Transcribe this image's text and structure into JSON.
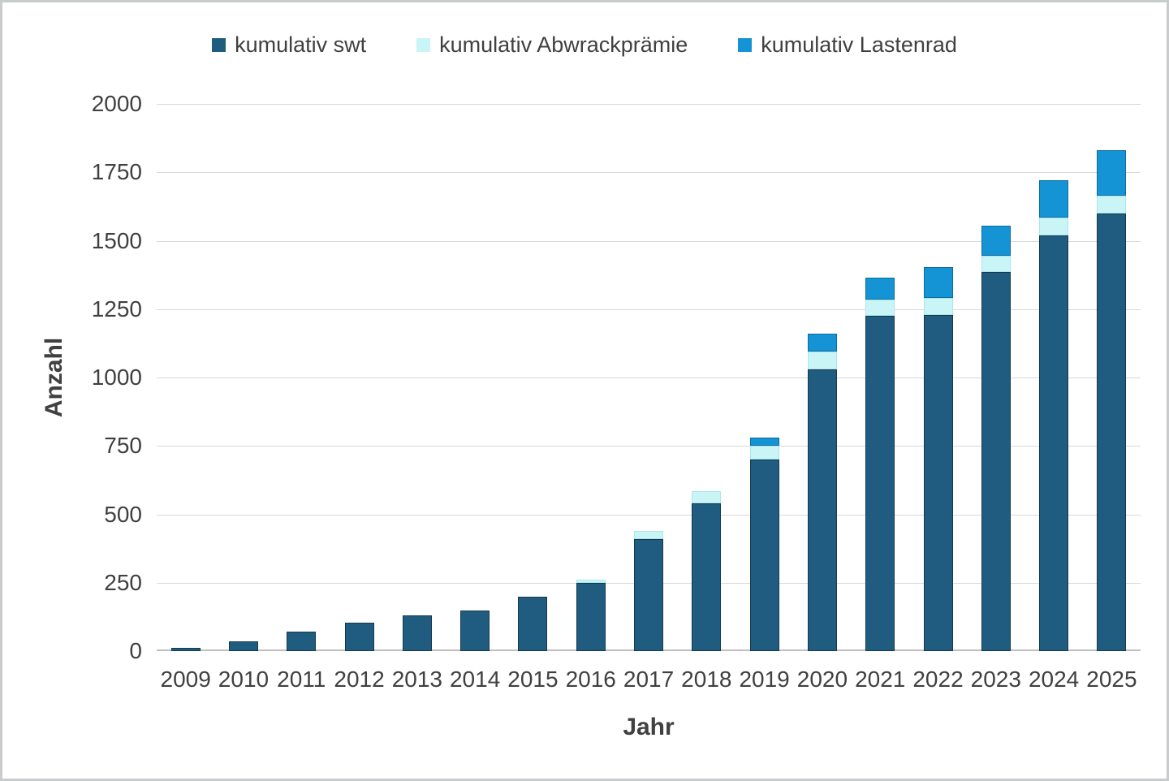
{
  "chart_data": {
    "type": "bar",
    "stacked": true,
    "title": "",
    "xlabel": "Jahr",
    "ylabel": "Anzahl",
    "ylim": [
      0,
      2000
    ],
    "yticks": [
      0,
      250,
      500,
      750,
      1000,
      1250,
      1500,
      1750,
      2000
    ],
    "grid": true,
    "legend_position": "top",
    "categories": [
      "2009",
      "2010",
      "2011",
      "2012",
      "2013",
      "2014",
      "2015",
      "2016",
      "2017",
      "2018",
      "2019",
      "2020",
      "2021",
      "2022",
      "2023",
      "2024",
      "2025"
    ],
    "series": [
      {
        "name": "kumulativ swt",
        "color": "#1F5C80",
        "border_color": "#14394F",
        "values": [
          12,
          35,
          70,
          105,
          130,
          150,
          200,
          250,
          410,
          540,
          700,
          1030,
          1225,
          1230,
          1385,
          1520,
          1600
        ]
      },
      {
        "name": "kumulativ Abwrackprämie",
        "color": "#C9F5F7",
        "border_color": "#ACE5E9",
        "values": [
          0,
          0,
          0,
          0,
          0,
          0,
          0,
          12,
          30,
          45,
          50,
          65,
          60,
          60,
          60,
          65,
          65
        ]
      },
      {
        "name": "kumulativ Lastenrad",
        "color": "#1494D4",
        "border_color": "#0C6CA0",
        "values": [
          0,
          0,
          0,
          0,
          0,
          0,
          0,
          0,
          0,
          0,
          30,
          65,
          80,
          115,
          110,
          135,
          165
        ]
      }
    ],
    "colors": {
      "gridline": "#D9D9D9",
      "axis_line": "#BFBFBF",
      "text": "#404040",
      "frame_border": "#C9CCCD",
      "background": "#FFFFFF"
    }
  }
}
